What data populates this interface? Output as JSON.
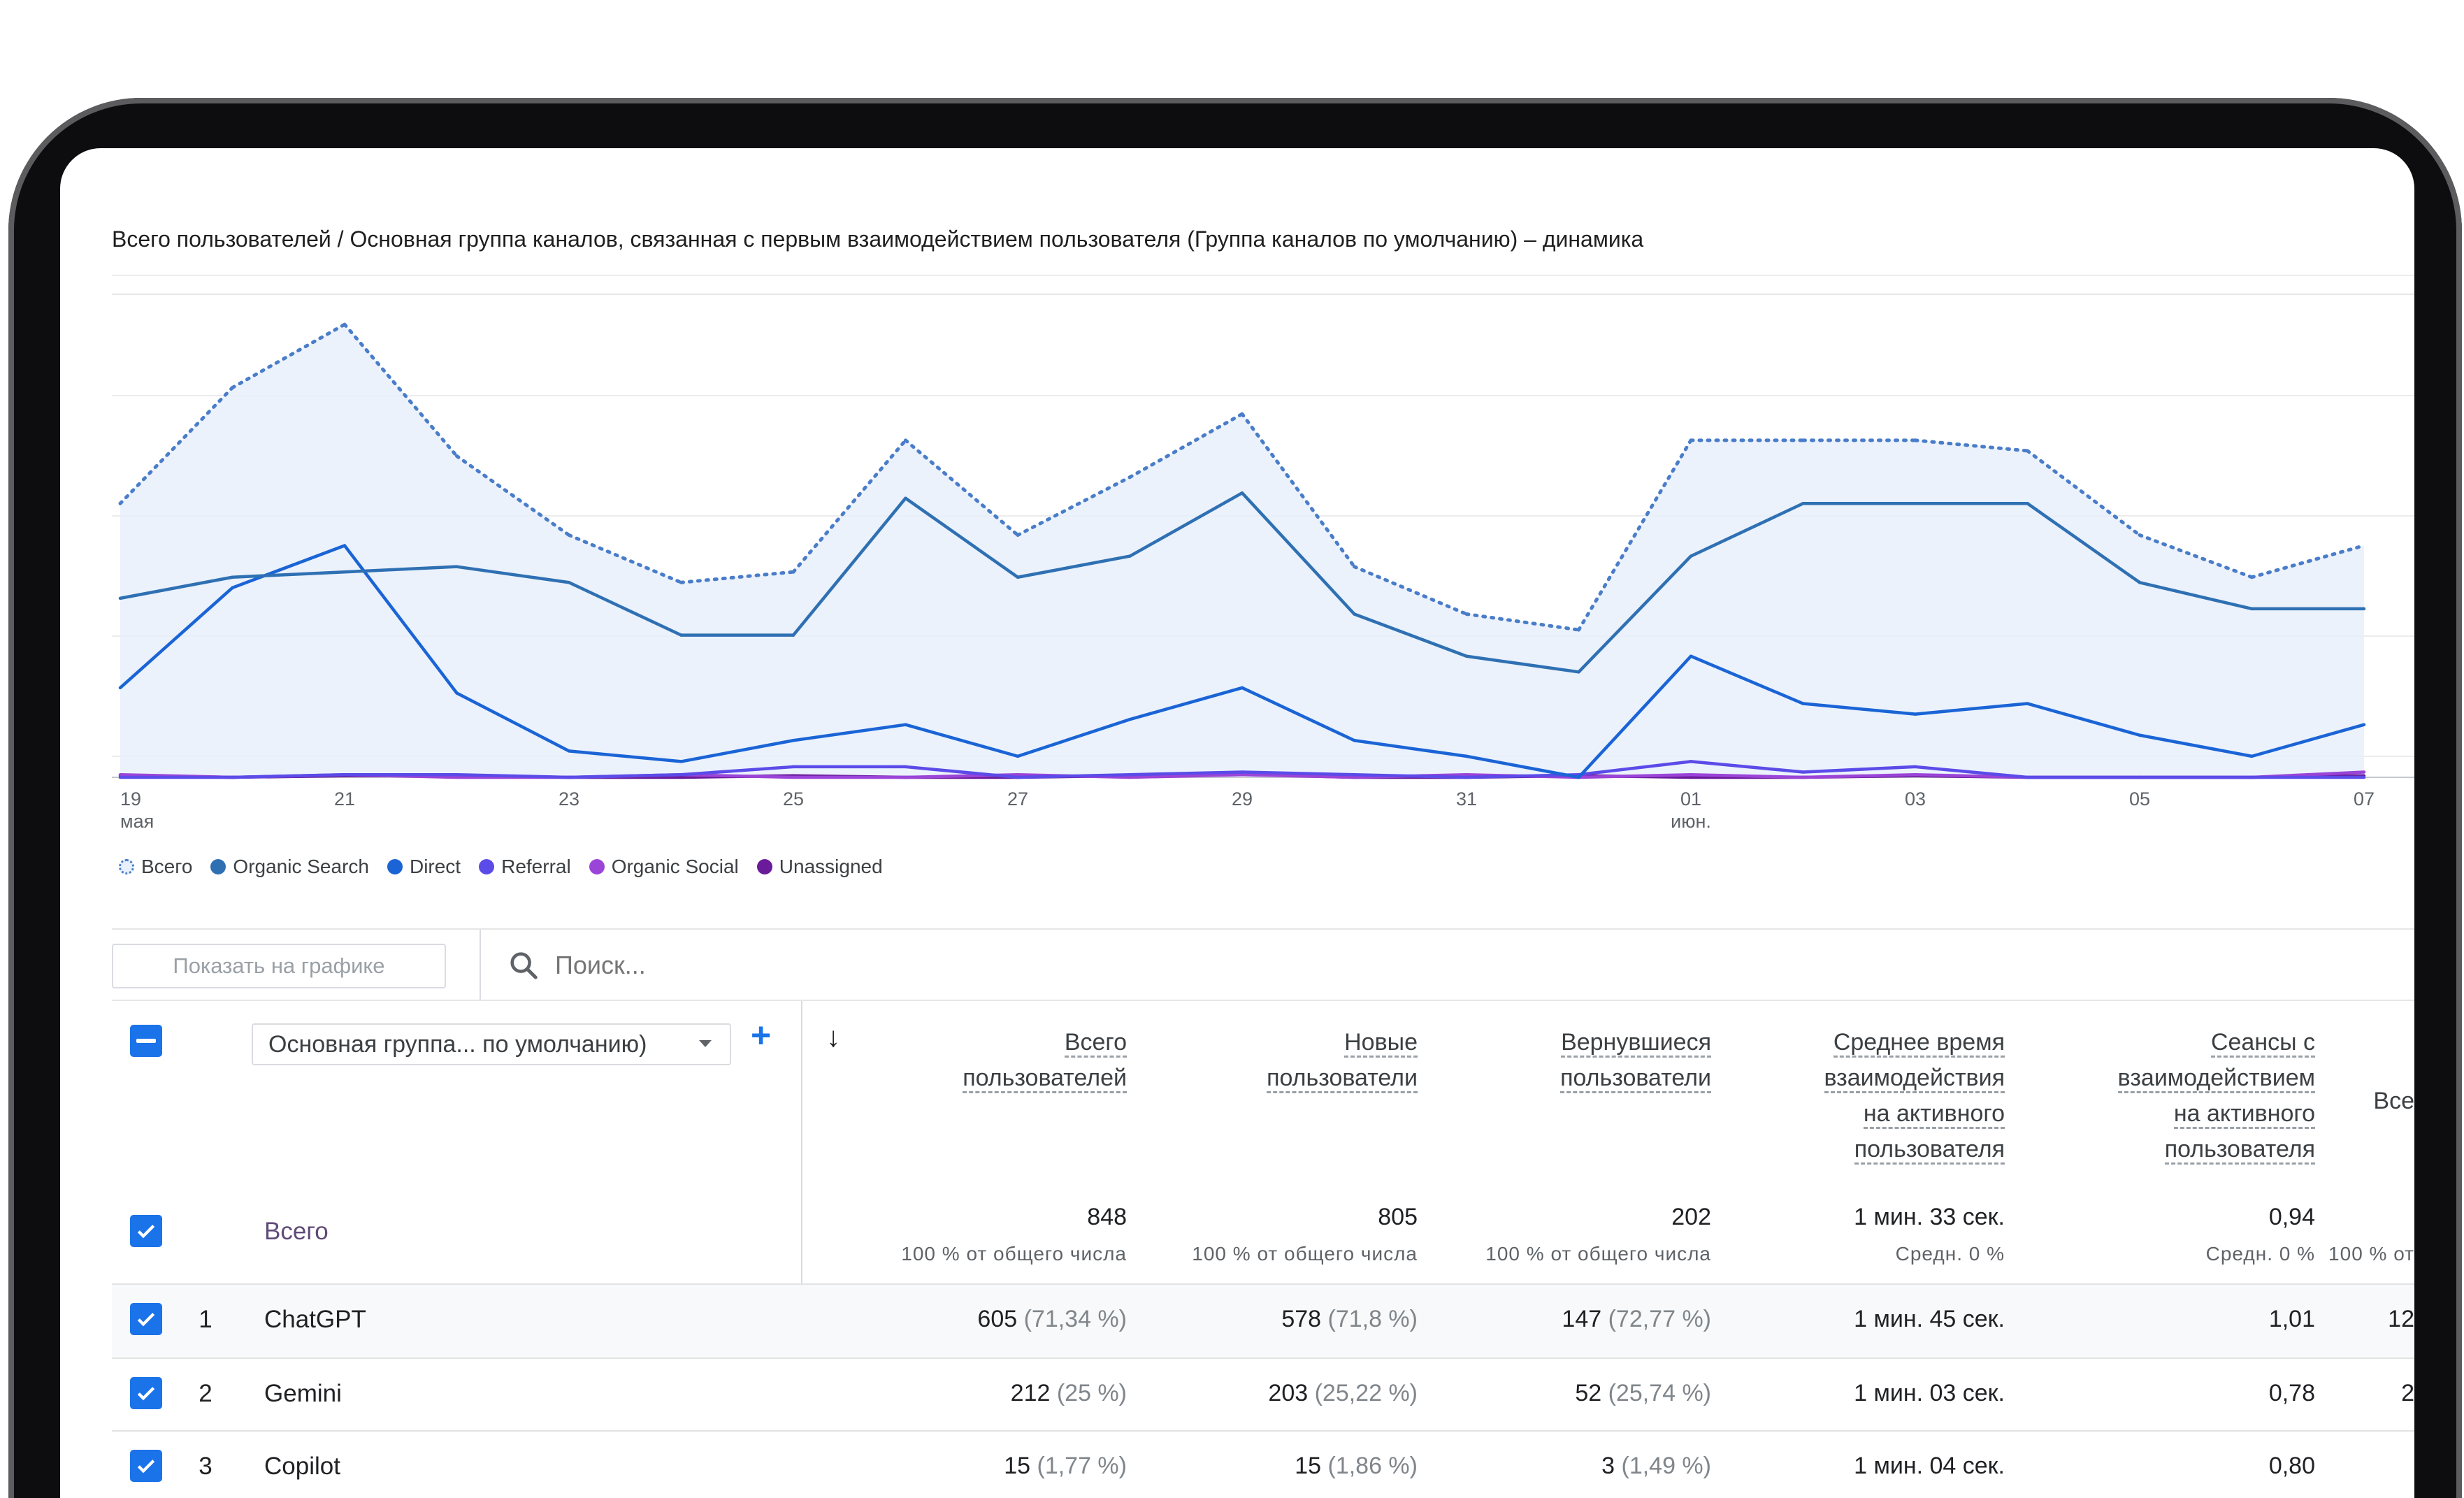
{
  "chart_data": {
    "type": "line",
    "title": "Всего пользователей / Основная группа каналов, связанная с первым взаимодействием пользователя (Группа каналов по умолчанию) – динамика",
    "x_labels": [
      {
        "day": "19",
        "month": "мая"
      },
      {
        "day": "21",
        "month": ""
      },
      {
        "day": "23",
        "month": ""
      },
      {
        "day": "25",
        "month": ""
      },
      {
        "day": "27",
        "month": ""
      },
      {
        "day": "29",
        "month": ""
      },
      {
        "day": "31",
        "month": ""
      },
      {
        "day": "01",
        "month": "июн."
      },
      {
        "day": "03",
        "month": ""
      },
      {
        "day": "05",
        "month": ""
      },
      {
        "day": "07",
        "month": ""
      }
    ],
    "ylim": [
      0,
      90
    ],
    "grid": true,
    "legend_position": "bottom-left",
    "series": [
      {
        "name": "Всего",
        "color": "#4a7dc9",
        "style": "dotted-area",
        "values": [
          52,
          74,
          86,
          61,
          46,
          37,
          39,
          64,
          46,
          57,
          69,
          40,
          31,
          28,
          64,
          64,
          64,
          62,
          46,
          38,
          44
        ]
      },
      {
        "name": "Organic Search",
        "color": "#2f70b3",
        "style": "line",
        "values": [
          34,
          38,
          39,
          40,
          37,
          27,
          27,
          53,
          38,
          42,
          54,
          31,
          23,
          20,
          42,
          52,
          52,
          52,
          37,
          32,
          32
        ]
      },
      {
        "name": "Direct",
        "color": "#1a64d6",
        "style": "line",
        "values": [
          17,
          36,
          44,
          16,
          5,
          3,
          7,
          10,
          4,
          11,
          17,
          7,
          4,
          0,
          23,
          14,
          12,
          14,
          8,
          4,
          10
        ]
      },
      {
        "name": "Referral",
        "color": "#5b4be8",
        "style": "line",
        "values": [
          0,
          0,
          0.5,
          0.5,
          0,
          0.5,
          2,
          2,
          0,
          0.5,
          1,
          0.5,
          0,
          0.5,
          3,
          1,
          2,
          0,
          0,
          0,
          0
        ]
      },
      {
        "name": "Organic Social",
        "color": "#9b44d8",
        "style": "line",
        "values": [
          0.5,
          0,
          0.5,
          0,
          0,
          0.5,
          0,
          0,
          0.5,
          0,
          0.5,
          0,
          0.5,
          0,
          0.5,
          0,
          0.5,
          0,
          0,
          0,
          1
        ]
      },
      {
        "name": "Unassigned",
        "color": "#6a1b9a",
        "style": "line",
        "values": [
          0.3,
          0,
          0.3,
          0.3,
          0,
          0,
          0.3,
          0,
          0,
          0.3,
          0.6,
          0,
          0,
          0.3,
          0,
          0,
          0.3,
          0,
          0,
          0,
          0.3
        ]
      }
    ]
  },
  "controls": {
    "show_on_chart": "Показать на графике",
    "search_placeholder": "Поиск...",
    "dimension_selector": "Основная группа... по умолчанию)",
    "add_symbol": "+",
    "sort_arrow": "↓"
  },
  "table": {
    "columns": [
      {
        "lines": [
          "Всего",
          "пользователей"
        ]
      },
      {
        "lines": [
          "Новые",
          "пользователи"
        ]
      },
      {
        "lines": [
          "Вернувшиеся",
          "пользователи"
        ]
      },
      {
        "lines": [
          "Среднее время",
          "взаимодействия",
          "на активного",
          "пользователя"
        ]
      },
      {
        "lines": [
          "Сеансы с",
          "взаимодействием",
          "на активного",
          "пользователя"
        ]
      },
      {
        "lines": [
          "Все"
        ]
      }
    ],
    "total": {
      "label": "Всего",
      "values": [
        "848",
        "805",
        "202",
        "1 мин. 33 сек.",
        "0,94",
        ""
      ],
      "subs": [
        "100 % от общего числа",
        "100 % от общего числа",
        "100 % от общего числа",
        "Средн. 0 %",
        "Средн. 0 %",
        "100 % от"
      ]
    },
    "rows": [
      {
        "num": "1",
        "label": "ChatGPT",
        "cells": [
          {
            "v": "605",
            "p": "(71,34 %)"
          },
          {
            "v": "578",
            "p": "(71,8 %)"
          },
          {
            "v": "147",
            "p": "(72,77 %)"
          },
          {
            "v": "1 мин. 45 сек.",
            "p": ""
          },
          {
            "v": "1,01",
            "p": ""
          },
          {
            "v": "12",
            "p": ""
          }
        ]
      },
      {
        "num": "2",
        "label": "Gemini",
        "cells": [
          {
            "v": "212",
            "p": "(25 %)"
          },
          {
            "v": "203",
            "p": "(25,22 %)"
          },
          {
            "v": "52",
            "p": "(25,74 %)"
          },
          {
            "v": "1 мин. 03 сек.",
            "p": ""
          },
          {
            "v": "0,78",
            "p": ""
          },
          {
            "v": "2",
            "p": ""
          }
        ]
      },
      {
        "num": "3",
        "label": "Copilot",
        "cells": [
          {
            "v": "15",
            "p": "(1,77 %)"
          },
          {
            "v": "15",
            "p": "(1,86 %)"
          },
          {
            "v": "3",
            "p": "(1,49 %)"
          },
          {
            "v": "1 мин. 04 сек.",
            "p": ""
          },
          {
            "v": "0,80",
            "p": ""
          },
          {
            "v": "",
            "p": ""
          }
        ]
      }
    ]
  }
}
